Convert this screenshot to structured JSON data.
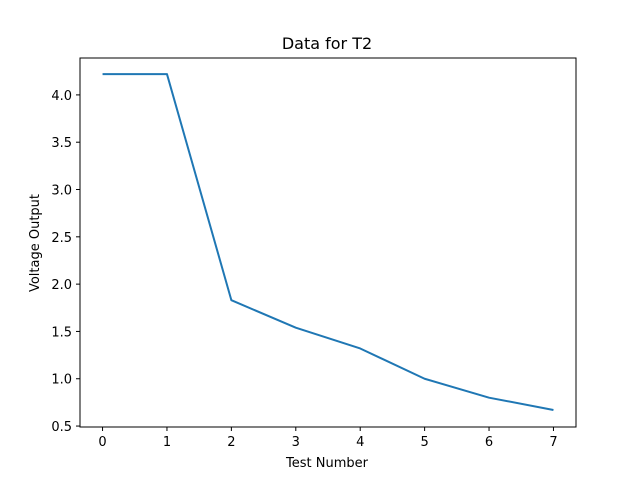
{
  "chart_data": {
    "type": "line",
    "title": "Data for T2",
    "xlabel": "Test Number",
    "ylabel": "Voltage Output",
    "x": [
      0,
      1,
      2,
      3,
      4,
      5,
      6,
      7
    ],
    "series": [
      {
        "values": [
          4.22,
          4.22,
          1.83,
          1.54,
          1.32,
          1.0,
          0.8,
          0.67
        ]
      }
    ],
    "xlim": [
      -0.35,
      7.35
    ],
    "ylim": [
      0.49,
      4.39
    ],
    "xticks": [
      0,
      1,
      2,
      3,
      4,
      5,
      6,
      7
    ],
    "yticks": [
      0.5,
      1.0,
      1.5,
      2.0,
      2.5,
      3.0,
      3.5,
      4.0
    ],
    "ytick_labels": [
      "0.5",
      "1.0",
      "1.5",
      "2.0",
      "2.5",
      "3.0",
      "3.5",
      "4.0"
    ],
    "grid": false,
    "line_color": "#1f77b4"
  }
}
